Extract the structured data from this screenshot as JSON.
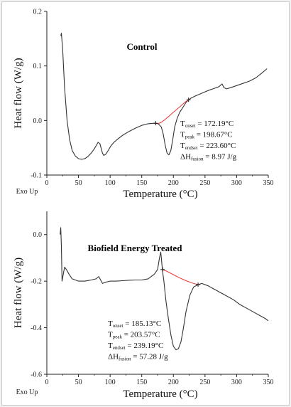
{
  "chart_data": [
    {
      "type": "line",
      "title": "Control",
      "xlabel": "Temperature (°C)",
      "ylabel": "Heat flow (W/g)",
      "exo_label": "Exo Up",
      "xlim": [
        0,
        350
      ],
      "ylim": [
        -0.1,
        0.2
      ],
      "xticks": [
        "0",
        "50",
        "100",
        "150",
        "200",
        "250",
        "300",
        "350"
      ],
      "yticks": [
        "-0.1",
        "0.0",
        "0.1",
        "0.2"
      ],
      "series": [
        {
          "x": [
            22,
            23,
            25,
            28,
            32,
            36,
            40,
            45,
            50,
            55,
            60,
            65,
            70,
            75,
            78,
            81,
            84,
            86,
            88,
            90,
            93,
            97,
            101,
            106,
            112,
            120,
            130,
            140,
            150,
            160,
            170,
            176,
            181,
            184,
            187,
            190,
            193,
            196,
            199,
            202,
            206,
            210,
            215,
            220,
            224,
            228,
            235,
            245,
            255,
            265,
            272,
            277,
            280,
            284,
            290,
            300,
            310,
            320,
            330,
            340,
            348
          ],
          "y": [
            0.155,
            0.16,
            0.13,
            0.06,
            0.0,
            -0.035,
            -0.055,
            -0.065,
            -0.07,
            -0.071,
            -0.07,
            -0.066,
            -0.06,
            -0.052,
            -0.046,
            -0.04,
            -0.043,
            -0.052,
            -0.06,
            -0.064,
            -0.062,
            -0.055,
            -0.047,
            -0.04,
            -0.034,
            -0.027,
            -0.02,
            -0.014,
            -0.009,
            -0.006,
            -0.005,
            -0.006,
            -0.012,
            -0.025,
            -0.045,
            -0.06,
            -0.063,
            -0.055,
            -0.035,
            -0.012,
            0.004,
            0.015,
            0.024,
            0.033,
            0.038,
            0.041,
            0.045,
            0.05,
            0.055,
            0.059,
            0.062,
            0.067,
            0.06,
            0.058,
            0.06,
            0.064,
            0.068,
            0.072,
            0.078,
            0.087,
            0.095
          ],
          "color": "#333333"
        },
        {
          "name": "baseline",
          "x": [
            175,
            180,
            185,
            190,
            195,
            200,
            205,
            210,
            215,
            220,
            224
          ],
          "y": [
            -0.006,
            -0.004,
            0.0,
            0.005,
            0.01,
            0.015,
            0.02,
            0.025,
            0.03,
            0.035,
            0.038
          ],
          "color": "#ee3333"
        }
      ],
      "markers": [
        {
          "x": 172.19,
          "y": -0.005
        },
        {
          "x": 224,
          "y": 0.038
        }
      ],
      "annotations": [
        {
          "symbol": "T",
          "sub": "onset",
          "value": " = 172.19°C"
        },
        {
          "symbol": "T",
          "sub": "peak",
          "value": " = 198.67°C"
        },
        {
          "symbol": "T",
          "sub": "endset",
          "value": " = 223.60°C"
        },
        {
          "symbol": "ΔH",
          "sub": "fusion",
          "value": " = 8.97 J/g"
        }
      ]
    },
    {
      "type": "line",
      "title": "Biofield Energy Treated",
      "xlabel": "Temperature (°C)",
      "ylabel": "Heat flow (W/g)",
      "exo_label": "Exo Up",
      "xlim": [
        0,
        350
      ],
      "ylim": [
        -0.6,
        0.1
      ],
      "xticks": [
        "0",
        "50",
        "100",
        "150",
        "200",
        "250",
        "300",
        "350"
      ],
      "yticks": [
        "-0.6",
        "-0.4",
        "-0.2",
        "0.0"
      ],
      "series": [
        {
          "x": [
            21,
            22,
            23,
            24,
            26,
            28,
            31,
            35,
            40,
            50,
            60,
            70,
            78,
            82,
            85,
            88,
            92,
            100,
            110,
            120,
            130,
            140,
            150,
            160,
            170,
            175,
            178,
            180,
            181,
            183,
            185,
            188,
            192,
            196,
            200,
            204,
            208,
            212,
            216,
            220,
            226,
            232,
            239,
            245,
            255,
            265,
            275,
            285,
            295,
            305,
            315,
            325,
            335,
            345,
            350
          ],
          "y": [
            0.0,
            0.03,
            -0.05,
            -0.2,
            -0.17,
            -0.14,
            -0.15,
            -0.17,
            -0.19,
            -0.2,
            -0.2,
            -0.195,
            -0.19,
            -0.18,
            -0.195,
            -0.21,
            -0.205,
            -0.2,
            -0.2,
            -0.198,
            -0.196,
            -0.195,
            -0.195,
            -0.19,
            -0.17,
            -0.15,
            -0.1,
            -0.075,
            -0.1,
            -0.16,
            -0.2,
            -0.28,
            -0.36,
            -0.43,
            -0.48,
            -0.495,
            -0.49,
            -0.46,
            -0.4,
            -0.33,
            -0.26,
            -0.225,
            -0.215,
            -0.21,
            -0.22,
            -0.235,
            -0.25,
            -0.265,
            -0.28,
            -0.3,
            -0.315,
            -0.33,
            -0.345,
            -0.36,
            -0.37
          ],
          "color": "#333333"
        },
        {
          "name": "baseline",
          "x": [
            182,
            190,
            200,
            210,
            220,
            230,
            239
          ],
          "y": [
            -0.15,
            -0.158,
            -0.172,
            -0.186,
            -0.198,
            -0.208,
            -0.215
          ],
          "color": "#ee3333"
        }
      ],
      "markers": [
        {
          "x": 183,
          "y": -0.15
        },
        {
          "x": 239,
          "y": -0.215
        }
      ],
      "annotations": [
        {
          "symbol": "T",
          "sub": "onset",
          "value": " = 185.13°C"
        },
        {
          "symbol": "T",
          "sub": "peak",
          "value": " = 203.57°C"
        },
        {
          "symbol": "T",
          "sub": "endset",
          "value": " = 239.19°C"
        },
        {
          "symbol": "ΔH",
          "sub": "fusion",
          "value": " = 57.28 J/g"
        }
      ]
    }
  ]
}
